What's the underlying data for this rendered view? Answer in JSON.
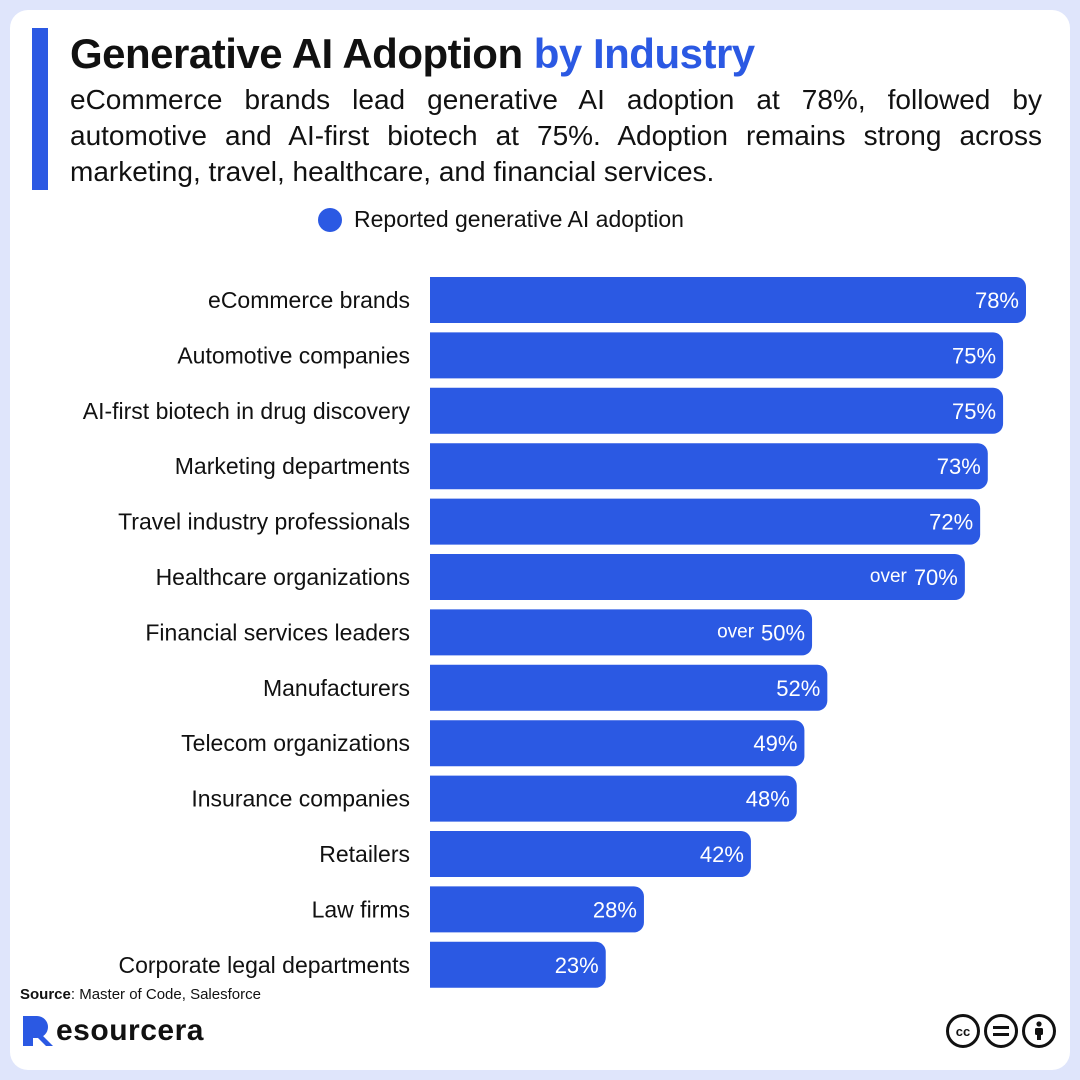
{
  "header": {
    "title_main": "Generative AI Adoption",
    "title_accent": "by Industry",
    "subtitle": "eCommerce brands lead generative AI adoption at 78%, followed by automotive and AI-first biotech at 75%. Adoption remains strong across marketing, travel, healthcare, and financial services."
  },
  "legend": {
    "label": "Reported generative AI adoption"
  },
  "colors": {
    "accent": "#2b59e3",
    "text": "#111111",
    "background": "#dfe5fb"
  },
  "chart_data": {
    "type": "bar",
    "orientation": "horizontal",
    "categories": [
      "eCommerce brands",
      "Automotive companies",
      "AI-first biotech in drug discovery",
      "Marketing departments",
      "Travel industry professionals",
      "Healthcare organizations",
      "Financial services leaders",
      "Manufacturers",
      "Telecom organizations",
      "Insurance companies",
      "Retailers",
      "Law firms",
      "Corporate legal departments"
    ],
    "series": [
      {
        "name": "Reported generative AI adoption",
        "values": [
          78,
          75,
          75,
          73,
          72,
          70,
          50,
          52,
          49,
          48,
          42,
          28,
          23
        ],
        "labels": [
          "78%",
          "75%",
          "75%",
          "73%",
          "72%",
          "70%",
          "50%",
          "52%",
          "49%",
          "48%",
          "42%",
          "28%",
          "23%"
        ],
        "label_prefixes": [
          "",
          "",
          "",
          "",
          "",
          "over",
          "over",
          "",
          "",
          "",
          "",
          "",
          ""
        ]
      }
    ],
    "xlim": [
      0,
      78
    ],
    "grid": false,
    "legend_position": "top"
  },
  "footer": {
    "source_label": "Source",
    "source_text": ": Master of Code, Salesforce",
    "brand": "esourcera",
    "license_icons": [
      "cc-icon",
      "nd-icon",
      "by-icon"
    ]
  }
}
